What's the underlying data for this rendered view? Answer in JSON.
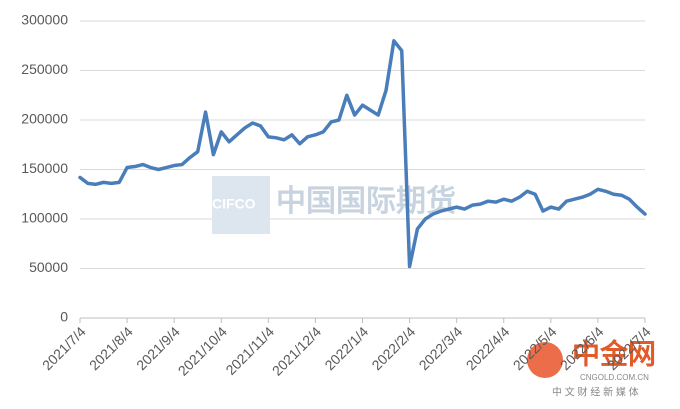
{
  "chart_data": {
    "type": "line",
    "categories": [
      "2021/7/4",
      null,
      null,
      null,
      null,
      null,
      "2021/8/4",
      null,
      null,
      null,
      null,
      null,
      "2021/9/4",
      null,
      null,
      null,
      null,
      null,
      "2021/10/4",
      null,
      null,
      null,
      null,
      null,
      "2021/11/4",
      null,
      null,
      null,
      null,
      null,
      "2021/12/4",
      null,
      null,
      null,
      null,
      null,
      "2022/1/4",
      null,
      null,
      null,
      null,
      null,
      "2022/2/4",
      null,
      null,
      null,
      null,
      null,
      "2022/3/4",
      null,
      null,
      null,
      null,
      null,
      "2022/4/4",
      null,
      null,
      null,
      null,
      null,
      "2022/5/4",
      null,
      null,
      null,
      null,
      null,
      "2022/6/4",
      null,
      null,
      null,
      null,
      null,
      "2022/7/4"
    ],
    "values": [
      142000,
      136000,
      135000,
      137000,
      136000,
      137000,
      152000,
      153000,
      155000,
      152000,
      150000,
      152000,
      154000,
      155000,
      162000,
      168000,
      208000,
      165000,
      188000,
      178000,
      185000,
      192000,
      197000,
      194000,
      183000,
      182000,
      180000,
      185000,
      176000,
      183000,
      185000,
      188000,
      198000,
      200000,
      225000,
      205000,
      215000,
      210000,
      205000,
      230000,
      280000,
      270000,
      52000,
      90000,
      100000,
      105000,
      108000,
      110000,
      112000,
      110000,
      114000,
      115000,
      118000,
      117000,
      120000,
      118000,
      122000,
      128000,
      125000,
      108000,
      112000,
      110000,
      118000,
      120000,
      122000,
      125000,
      130000,
      128000,
      125000,
      124000,
      120000,
      112000,
      105000
    ],
    "color": "#4a7ebb",
    "ylim": [
      0,
      300000
    ],
    "yticks": [
      0,
      50000,
      100000,
      150000,
      200000,
      250000,
      300000
    ],
    "grid": true,
    "watermarks": [
      "CIFCO",
      "中国国际期货",
      "中金网",
      "CNGOLD.COM.CN",
      "中 文 财 经 新 媒 体"
    ]
  }
}
